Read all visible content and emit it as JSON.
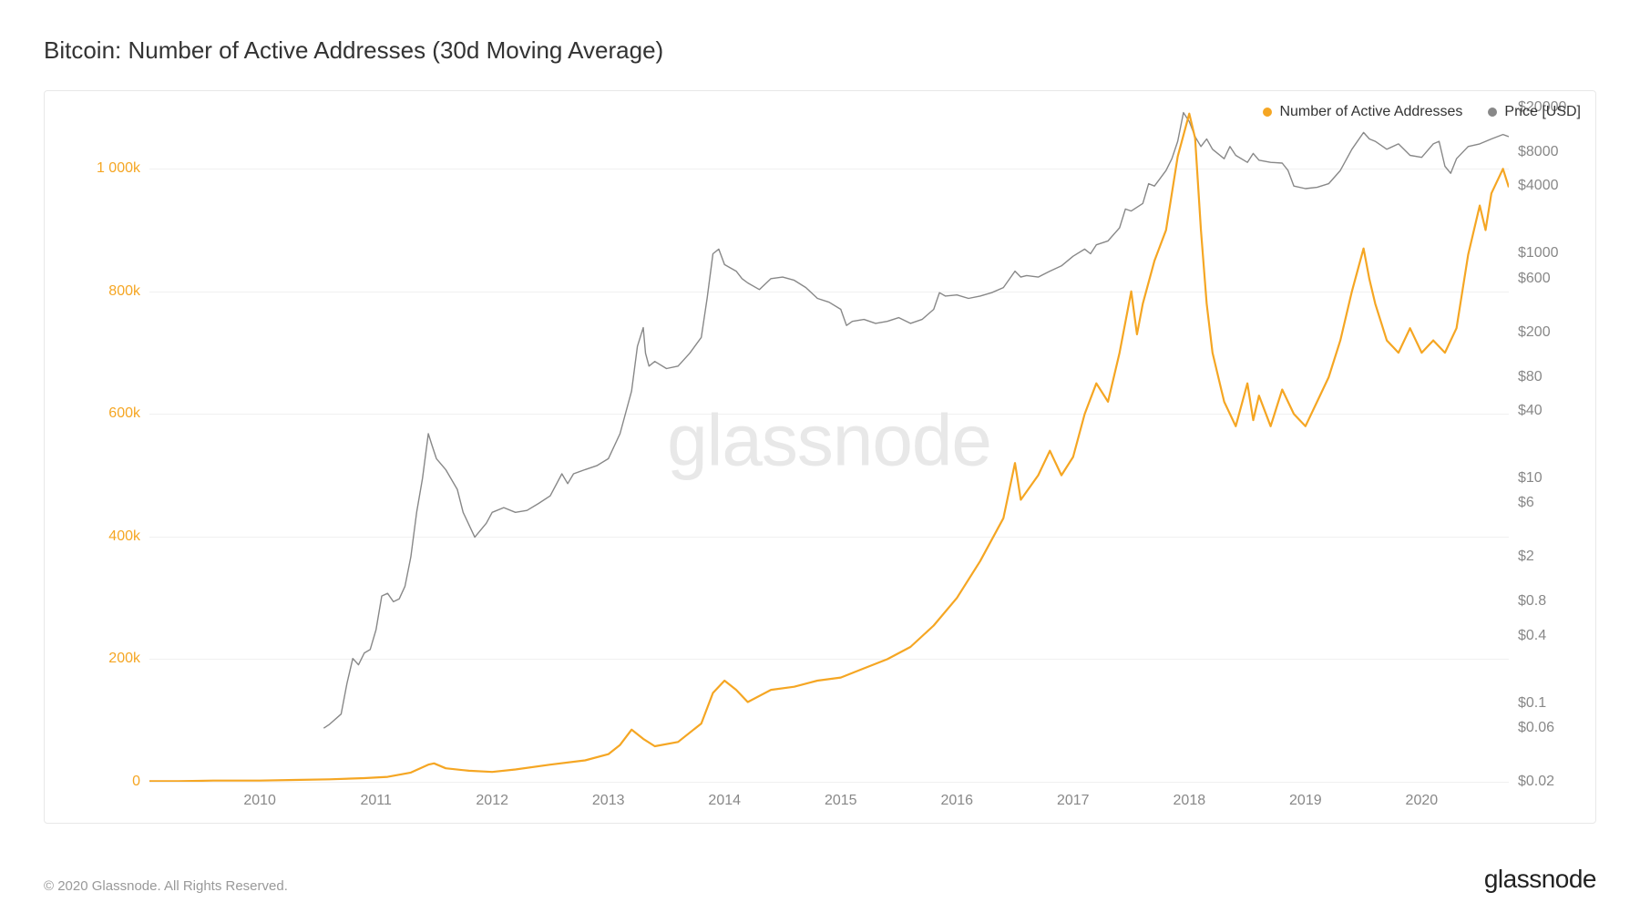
{
  "title": "Bitcoin: Number of Active Addresses (30d Moving Average)",
  "copyright": "© 2020 Glassnode. All Rights Reserved.",
  "brand": "glassnode",
  "watermark": "glassnode",
  "chart": {
    "type": "line-dual-axis",
    "background_color": "#ffffff",
    "border_color": "#e8e8e8",
    "grid_color": "#f0f0f0",
    "watermark_color": "#e8e8e8",
    "watermark_fontsize": 80,
    "title_fontsize": 26,
    "title_color": "#333333",
    "label_fontsize": 16,
    "x": {
      "domain": [
        2009.05,
        2020.75
      ],
      "ticks": [
        2010,
        2011,
        2012,
        2013,
        2014,
        2015,
        2016,
        2017,
        2018,
        2019,
        2020
      ],
      "tick_color": "#888888"
    },
    "y_left": {
      "domain": [
        0,
        1100
      ],
      "ticks": [
        {
          "v": 0,
          "label": "0"
        },
        {
          "v": 200,
          "label": "200k"
        },
        {
          "v": 400,
          "label": "400k"
        },
        {
          "v": 600,
          "label": "600k"
        },
        {
          "v": 800,
          "label": "800k"
        },
        {
          "v": 1000,
          "label": "1 000k"
        }
      ],
      "tick_color": "#f5a623"
    },
    "y_right": {
      "scale": "log",
      "domain": [
        0.02,
        20000
      ],
      "ticks": [
        {
          "v": 0.02,
          "label": "$0.02"
        },
        {
          "v": 0.06,
          "label": "$0.06"
        },
        {
          "v": 0.1,
          "label": "$0.1"
        },
        {
          "v": 0.4,
          "label": "$0.4"
        },
        {
          "v": 0.8,
          "label": "$0.8"
        },
        {
          "v": 2,
          "label": "$2"
        },
        {
          "v": 6,
          "label": "$6"
        },
        {
          "v": 10,
          "label": "$10"
        },
        {
          "v": 40,
          "label": "$40"
        },
        {
          "v": 80,
          "label": "$80"
        },
        {
          "v": 200,
          "label": "$200"
        },
        {
          "v": 600,
          "label": "$600"
        },
        {
          "v": 1000,
          "label": "$1000"
        },
        {
          "v": 4000,
          "label": "$4000"
        },
        {
          "v": 8000,
          "label": "$8000"
        },
        {
          "v": 20000,
          "label": "$20000"
        }
      ],
      "tick_color": "#888888"
    },
    "legend": [
      {
        "label": "Number of Active Addresses",
        "color": "#f5a623"
      },
      {
        "label": "Price [USD]",
        "color": "#888888"
      }
    ],
    "series": {
      "addresses": {
        "axis": "left",
        "color": "#f5a623",
        "line_width": 2.2,
        "data": [
          [
            2009.05,
            1
          ],
          [
            2009.3,
            1
          ],
          [
            2009.6,
            2
          ],
          [
            2010.0,
            2
          ],
          [
            2010.3,
            3
          ],
          [
            2010.6,
            4
          ],
          [
            2010.9,
            6
          ],
          [
            2011.1,
            8
          ],
          [
            2011.3,
            15
          ],
          [
            2011.45,
            28
          ],
          [
            2011.5,
            30
          ],
          [
            2011.6,
            22
          ],
          [
            2011.8,
            18
          ],
          [
            2012.0,
            16
          ],
          [
            2012.2,
            20
          ],
          [
            2012.5,
            28
          ],
          [
            2012.8,
            35
          ],
          [
            2013.0,
            45
          ],
          [
            2013.1,
            60
          ],
          [
            2013.2,
            85
          ],
          [
            2013.3,
            70
          ],
          [
            2013.4,
            58
          ],
          [
            2013.6,
            65
          ],
          [
            2013.8,
            95
          ],
          [
            2013.9,
            145
          ],
          [
            2014.0,
            165
          ],
          [
            2014.1,
            150
          ],
          [
            2014.2,
            130
          ],
          [
            2014.4,
            150
          ],
          [
            2014.6,
            155
          ],
          [
            2014.8,
            165
          ],
          [
            2015.0,
            170
          ],
          [
            2015.2,
            185
          ],
          [
            2015.4,
            200
          ],
          [
            2015.6,
            220
          ],
          [
            2015.8,
            255
          ],
          [
            2016.0,
            300
          ],
          [
            2016.2,
            360
          ],
          [
            2016.4,
            430
          ],
          [
            2016.5,
            520
          ],
          [
            2016.55,
            460
          ],
          [
            2016.7,
            500
          ],
          [
            2016.8,
            540
          ],
          [
            2016.9,
            500
          ],
          [
            2017.0,
            530
          ],
          [
            2017.1,
            600
          ],
          [
            2017.2,
            650
          ],
          [
            2017.3,
            620
          ],
          [
            2017.4,
            700
          ],
          [
            2017.5,
            800
          ],
          [
            2017.55,
            730
          ],
          [
            2017.6,
            780
          ],
          [
            2017.7,
            850
          ],
          [
            2017.8,
            900
          ],
          [
            2017.9,
            1020
          ],
          [
            2018.0,
            1090
          ],
          [
            2018.05,
            1050
          ],
          [
            2018.1,
            900
          ],
          [
            2018.15,
            780
          ],
          [
            2018.2,
            700
          ],
          [
            2018.3,
            620
          ],
          [
            2018.4,
            580
          ],
          [
            2018.5,
            650
          ],
          [
            2018.55,
            590
          ],
          [
            2018.6,
            630
          ],
          [
            2018.7,
            580
          ],
          [
            2018.8,
            640
          ],
          [
            2018.9,
            600
          ],
          [
            2019.0,
            580
          ],
          [
            2019.1,
            620
          ],
          [
            2019.2,
            660
          ],
          [
            2019.3,
            720
          ],
          [
            2019.4,
            800
          ],
          [
            2019.5,
            870
          ],
          [
            2019.55,
            820
          ],
          [
            2019.6,
            780
          ],
          [
            2019.7,
            720
          ],
          [
            2019.8,
            700
          ],
          [
            2019.9,
            740
          ],
          [
            2020.0,
            700
          ],
          [
            2020.1,
            720
          ],
          [
            2020.2,
            700
          ],
          [
            2020.3,
            740
          ],
          [
            2020.4,
            860
          ],
          [
            2020.5,
            940
          ],
          [
            2020.55,
            900
          ],
          [
            2020.6,
            960
          ],
          [
            2020.7,
            1000
          ],
          [
            2020.75,
            970
          ]
        ]
      },
      "price": {
        "axis": "right",
        "color": "#888888",
        "line_width": 1.4,
        "data": [
          [
            2010.55,
            0.06
          ],
          [
            2010.6,
            0.065
          ],
          [
            2010.7,
            0.08
          ],
          [
            2010.75,
            0.15
          ],
          [
            2010.8,
            0.25
          ],
          [
            2010.85,
            0.22
          ],
          [
            2010.9,
            0.28
          ],
          [
            2010.95,
            0.3
          ],
          [
            2011.0,
            0.45
          ],
          [
            2011.05,
            0.9
          ],
          [
            2011.1,
            0.95
          ],
          [
            2011.15,
            0.8
          ],
          [
            2011.2,
            0.85
          ],
          [
            2011.25,
            1.1
          ],
          [
            2011.3,
            2
          ],
          [
            2011.35,
            5
          ],
          [
            2011.4,
            10
          ],
          [
            2011.45,
            25
          ],
          [
            2011.48,
            20
          ],
          [
            2011.52,
            15
          ],
          [
            2011.6,
            12
          ],
          [
            2011.7,
            8
          ],
          [
            2011.75,
            5
          ],
          [
            2011.85,
            3
          ],
          [
            2011.95,
            4
          ],
          [
            2012.0,
            5
          ],
          [
            2012.1,
            5.5
          ],
          [
            2012.2,
            5
          ],
          [
            2012.3,
            5.2
          ],
          [
            2012.4,
            6
          ],
          [
            2012.5,
            7
          ],
          [
            2012.6,
            11
          ],
          [
            2012.65,
            9
          ],
          [
            2012.7,
            11
          ],
          [
            2012.8,
            12
          ],
          [
            2012.9,
            13
          ],
          [
            2013.0,
            15
          ],
          [
            2013.1,
            25
          ],
          [
            2013.2,
            60
          ],
          [
            2013.25,
            150
          ],
          [
            2013.3,
            220
          ],
          [
            2013.32,
            130
          ],
          [
            2013.35,
            100
          ],
          [
            2013.4,
            110
          ],
          [
            2013.5,
            95
          ],
          [
            2013.6,
            100
          ],
          [
            2013.7,
            130
          ],
          [
            2013.8,
            180
          ],
          [
            2013.85,
            400
          ],
          [
            2013.9,
            1000
          ],
          [
            2013.95,
            1100
          ],
          [
            2014.0,
            800
          ],
          [
            2014.1,
            700
          ],
          [
            2014.15,
            600
          ],
          [
            2014.2,
            550
          ],
          [
            2014.3,
            480
          ],
          [
            2014.4,
            600
          ],
          [
            2014.5,
            620
          ],
          [
            2014.6,
            580
          ],
          [
            2014.7,
            500
          ],
          [
            2014.8,
            400
          ],
          [
            2014.9,
            370
          ],
          [
            2015.0,
            320
          ],
          [
            2015.05,
            230
          ],
          [
            2015.1,
            250
          ],
          [
            2015.2,
            260
          ],
          [
            2015.3,
            240
          ],
          [
            2015.4,
            250
          ],
          [
            2015.5,
            270
          ],
          [
            2015.6,
            240
          ],
          [
            2015.7,
            260
          ],
          [
            2015.8,
            320
          ],
          [
            2015.85,
            450
          ],
          [
            2015.9,
            420
          ],
          [
            2016.0,
            430
          ],
          [
            2016.1,
            400
          ],
          [
            2016.2,
            420
          ],
          [
            2016.3,
            450
          ],
          [
            2016.4,
            500
          ],
          [
            2016.5,
            700
          ],
          [
            2016.55,
            620
          ],
          [
            2016.6,
            640
          ],
          [
            2016.7,
            620
          ],
          [
            2016.8,
            700
          ],
          [
            2016.9,
            780
          ],
          [
            2017.0,
            950
          ],
          [
            2017.1,
            1100
          ],
          [
            2017.15,
            1000
          ],
          [
            2017.2,
            1200
          ],
          [
            2017.3,
            1300
          ],
          [
            2017.4,
            1700
          ],
          [
            2017.45,
            2500
          ],
          [
            2017.5,
            2400
          ],
          [
            2017.6,
            2800
          ],
          [
            2017.65,
            4200
          ],
          [
            2017.7,
            4000
          ],
          [
            2017.8,
            5500
          ],
          [
            2017.85,
            7000
          ],
          [
            2017.9,
            10000
          ],
          [
            2017.95,
            18000
          ],
          [
            2018.0,
            15000
          ],
          [
            2018.05,
            11000
          ],
          [
            2018.1,
            9000
          ],
          [
            2018.15,
            10500
          ],
          [
            2018.2,
            8500
          ],
          [
            2018.3,
            7000
          ],
          [
            2018.35,
            9000
          ],
          [
            2018.4,
            7500
          ],
          [
            2018.5,
            6500
          ],
          [
            2018.55,
            7800
          ],
          [
            2018.6,
            6800
          ],
          [
            2018.7,
            6500
          ],
          [
            2018.8,
            6400
          ],
          [
            2018.85,
            5500
          ],
          [
            2018.9,
            4000
          ],
          [
            2019.0,
            3800
          ],
          [
            2019.1,
            3900
          ],
          [
            2019.2,
            4200
          ],
          [
            2019.3,
            5500
          ],
          [
            2019.4,
            8500
          ],
          [
            2019.5,
            12000
          ],
          [
            2019.55,
            10500
          ],
          [
            2019.6,
            10000
          ],
          [
            2019.7,
            8500
          ],
          [
            2019.8,
            9500
          ],
          [
            2019.9,
            7500
          ],
          [
            2020.0,
            7200
          ],
          [
            2020.1,
            9500
          ],
          [
            2020.15,
            10000
          ],
          [
            2020.2,
            6000
          ],
          [
            2020.25,
            5200
          ],
          [
            2020.3,
            7000
          ],
          [
            2020.4,
            9000
          ],
          [
            2020.5,
            9500
          ],
          [
            2020.6,
            10500
          ],
          [
            2020.7,
            11500
          ],
          [
            2020.75,
            11000
          ]
        ]
      }
    }
  }
}
